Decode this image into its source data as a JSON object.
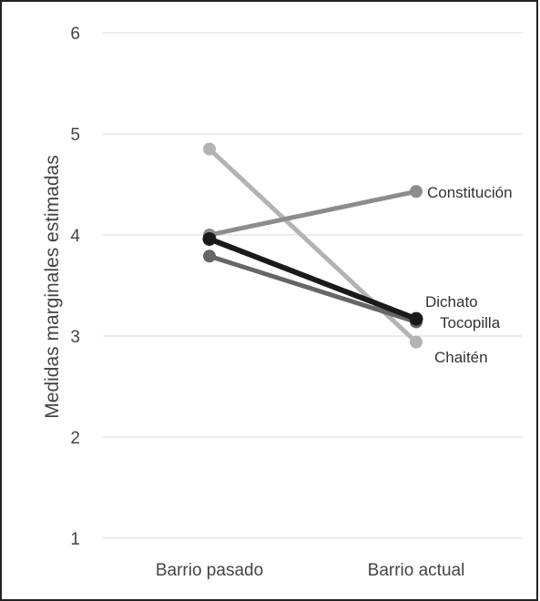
{
  "chart_data": {
    "type": "line",
    "x": [
      "Barrio pasado",
      "Barrio actual"
    ],
    "ylabel": "Medidas marginales estimadas",
    "xlabel": "",
    "ylim": [
      1,
      6
    ],
    "yticks": [
      1,
      2,
      3,
      4,
      5,
      6
    ],
    "grid": true,
    "series": [
      {
        "name": "Chaitén",
        "values": [
          4.85,
          2.94
        ],
        "color": "#b3b3b3"
      },
      {
        "name": "Constitución",
        "values": [
          4.0,
          4.43
        ],
        "color": "#8c8c8c"
      },
      {
        "name": "Tocopilla",
        "values": [
          3.79,
          3.14
        ],
        "color": "#666666"
      },
      {
        "name": "Dichato",
        "values": [
          3.96,
          3.17
        ],
        "color": "#1a1a1a"
      }
    ]
  }
}
